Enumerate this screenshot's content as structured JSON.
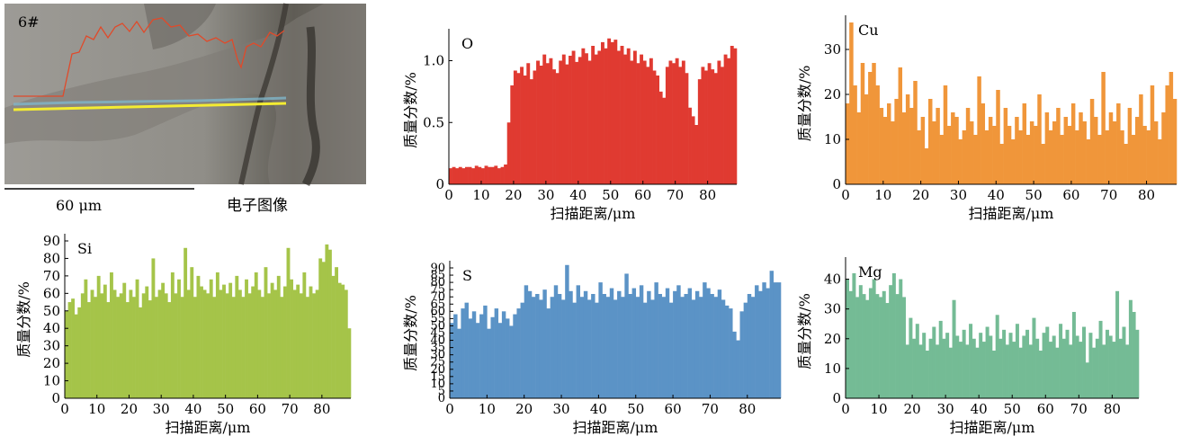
{
  "micrograph": {
    "label": "6#",
    "scale_bar_label": "60 μm",
    "caption": "电子图像"
  },
  "chart_data": [
    {
      "type": "bar",
      "element": "O",
      "color": "#e03a31",
      "xlabel": "扫描距离/μm",
      "ylabel": "质量分数/%",
      "xlim": [
        0,
        89
      ],
      "ylim": [
        0,
        1.2
      ],
      "xticks": [
        0,
        10,
        20,
        30,
        40,
        50,
        60,
        70,
        80
      ],
      "yticks": [
        0,
        0.5,
        1.0
      ],
      "ytick_labels": [
        "0",
        "0.5",
        "1.0"
      ],
      "x": [
        0,
        1,
        2,
        3,
        4,
        5,
        6,
        7,
        8,
        9,
        10,
        11,
        12,
        13,
        14,
        15,
        16,
        17,
        18,
        19,
        20,
        21,
        22,
        23,
        24,
        25,
        26,
        27,
        28,
        29,
        30,
        31,
        32,
        33,
        34,
        35,
        36,
        37,
        38,
        39,
        40,
        41,
        42,
        43,
        44,
        45,
        46,
        47,
        48,
        49,
        50,
        51,
        52,
        53,
        54,
        55,
        56,
        57,
        58,
        59,
        60,
        61,
        62,
        63,
        64,
        65,
        66,
        67,
        68,
        69,
        70,
        71,
        72,
        73,
        74,
        75,
        76,
        77,
        78,
        79,
        80,
        81,
        82,
        83,
        84,
        85,
        86,
        87,
        88
      ],
      "values": [
        0.13,
        0.14,
        0.13,
        0.14,
        0.13,
        0.14,
        0.14,
        0.13,
        0.15,
        0.14,
        0.13,
        0.15,
        0.14,
        0.14,
        0.15,
        0.13,
        0.14,
        0.16,
        0.5,
        0.8,
        0.92,
        0.9,
        0.95,
        0.88,
        0.98,
        0.85,
        0.92,
        1.0,
        0.96,
        1.05,
        0.98,
        1.02,
        0.93,
        0.9,
        1.0,
        1.05,
        0.97,
        1.04,
        1.08,
        0.99,
        1.03,
        1.1,
        1.06,
        1.0,
        1.12,
        1.05,
        1.08,
        1.15,
        1.1,
        1.18,
        1.15,
        1.17,
        1.08,
        1.12,
        1.05,
        1.1,
        1.0,
        1.08,
        0.98,
        1.05,
        1.0,
        0.95,
        1.02,
        0.92,
        0.88,
        0.75,
        0.7,
        0.95,
        1.0,
        0.98,
        1.02,
        0.95,
        1.0,
        0.9,
        0.62,
        0.55,
        0.48,
        0.85,
        0.95,
        0.92,
        0.98,
        0.93,
        0.9,
        1.0,
        0.95,
        1.05,
        1.02,
        1.12,
        1.1
      ]
    },
    {
      "type": "bar",
      "element": "Cu",
      "color": "#f0963a",
      "xlabel": "扫描距离/μm",
      "ylabel": "质量分数/%",
      "xlim": [
        0,
        88
      ],
      "ylim": [
        0,
        36
      ],
      "xticks": [
        0,
        10,
        20,
        30,
        40,
        50,
        60,
        70,
        80
      ],
      "yticks": [
        0,
        10,
        20,
        30
      ],
      "ytick_labels": [
        "0",
        "10",
        "20",
        "30"
      ],
      "x": [
        0,
        1,
        2,
        3,
        4,
        5,
        6,
        7,
        8,
        9,
        10,
        11,
        12,
        13,
        14,
        15,
        16,
        17,
        18,
        19,
        20,
        21,
        22,
        23,
        24,
        25,
        26,
        27,
        28,
        29,
        30,
        31,
        32,
        33,
        34,
        35,
        36,
        37,
        38,
        39,
        40,
        41,
        42,
        43,
        44,
        45,
        46,
        47,
        48,
        49,
        50,
        51,
        52,
        53,
        54,
        55,
        56,
        57,
        58,
        59,
        60,
        61,
        62,
        63,
        64,
        65,
        66,
        67,
        68,
        69,
        70,
        71,
        72,
        73,
        74,
        75,
        76,
        77,
        78,
        79,
        80,
        81,
        82,
        83,
        84,
        85,
        86,
        87
      ],
      "values": [
        18,
        36,
        22,
        16,
        27,
        20,
        25,
        27,
        22,
        17,
        15,
        18,
        14,
        19,
        26,
        16,
        20,
        17,
        23,
        12,
        15,
        8,
        19,
        14,
        17,
        11,
        22,
        13,
        16,
        15,
        10,
        12,
        17,
        14,
        11,
        24,
        18,
        12,
        15,
        13,
        21,
        9,
        17,
        13,
        10,
        15,
        12,
        18,
        11,
        14,
        13,
        20,
        9,
        16,
        12,
        14,
        17,
        11,
        15,
        13,
        18,
        12,
        16,
        14,
        10,
        19,
        15,
        11,
        25,
        12,
        16,
        14,
        18,
        12,
        9,
        17,
        11,
        15,
        20,
        13,
        12,
        22,
        14,
        10,
        16,
        22,
        25,
        19
      ]
    },
    {
      "type": "bar",
      "element": "Si",
      "color": "#a5c449",
      "xlabel": "扫描距离/μm",
      "ylabel": "质量分数/%",
      "xlim": [
        0,
        89
      ],
      "ylim": [
        0,
        90
      ],
      "xticks": [
        0,
        10,
        20,
        30,
        40,
        50,
        60,
        70,
        80
      ],
      "yticks": [
        0,
        10,
        20,
        30,
        40,
        50,
        60,
        70,
        80,
        90
      ],
      "ytick_labels": [
        "0",
        "10",
        "20",
        "30",
        "40",
        "50",
        "60",
        "70",
        "80",
        "90"
      ],
      "x": [
        0,
        1,
        2,
        3,
        4,
        5,
        6,
        7,
        8,
        9,
        10,
        11,
        12,
        13,
        14,
        15,
        16,
        17,
        18,
        19,
        20,
        21,
        22,
        23,
        24,
        25,
        26,
        27,
        28,
        29,
        30,
        31,
        32,
        33,
        34,
        35,
        36,
        37,
        38,
        39,
        40,
        41,
        42,
        43,
        44,
        45,
        46,
        47,
        48,
        49,
        50,
        51,
        52,
        53,
        54,
        55,
        56,
        57,
        58,
        59,
        60,
        61,
        62,
        63,
        64,
        65,
        66,
        67,
        68,
        69,
        70,
        71,
        72,
        73,
        74,
        75,
        76,
        77,
        78,
        79,
        80,
        81,
        82,
        83,
        84,
        85,
        86,
        87,
        88
      ],
      "values": [
        50,
        55,
        57,
        48,
        52,
        60,
        68,
        55,
        62,
        58,
        70,
        60,
        65,
        55,
        72,
        62,
        58,
        60,
        66,
        55,
        62,
        58,
        68,
        52,
        60,
        64,
        56,
        80,
        58,
        62,
        66,
        60,
        55,
        72,
        60,
        68,
        58,
        86,
        62,
        75,
        58,
        70,
        64,
        62,
        60,
        68,
        58,
        72,
        62,
        65,
        60,
        66,
        58,
        70,
        62,
        58,
        68,
        60,
        64,
        72,
        62,
        58,
        75,
        60,
        66,
        62,
        70,
        58,
        64,
        86,
        68,
        62,
        65,
        60,
        72,
        58,
        64,
        60,
        62,
        80,
        78,
        88,
        85,
        70,
        75,
        66,
        65,
        62,
        40
      ]
    },
    {
      "type": "bar",
      "element": "S",
      "color": "#5b93c6",
      "xlabel": "扫描距离/μm",
      "ylabel": "质量分数/%",
      "xlim": [
        0,
        89
      ],
      "ylim": [
        0,
        90
      ],
      "xticks": [
        0,
        10,
        20,
        30,
        40,
        50,
        60,
        70,
        80
      ],
      "yticks": [
        0,
        5,
        10,
        15,
        20,
        25,
        30,
        35,
        40,
        45,
        50,
        55,
        60,
        65,
        70,
        75,
        80,
        85,
        90
      ],
      "ytick_labels": [
        "0",
        "5",
        "10",
        "15",
        "20",
        "25",
        "30",
        "35",
        "40",
        "45",
        "50",
        "55",
        "60",
        "65",
        "70",
        "75",
        "80",
        "85",
        "90"
      ],
      "x": [
        0,
        1,
        2,
        3,
        4,
        5,
        6,
        7,
        8,
        9,
        10,
        11,
        12,
        13,
        14,
        15,
        16,
        17,
        18,
        19,
        20,
        21,
        22,
        23,
        24,
        25,
        26,
        27,
        28,
        29,
        30,
        31,
        32,
        33,
        34,
        35,
        36,
        37,
        38,
        39,
        40,
        41,
        42,
        43,
        44,
        45,
        46,
        47,
        48,
        49,
        50,
        51,
        52,
        53,
        54,
        55,
        56,
        57,
        58,
        59,
        60,
        61,
        62,
        63,
        64,
        65,
        66,
        67,
        68,
        69,
        70,
        71,
        72,
        73,
        74,
        75,
        76,
        77,
        78,
        79,
        80,
        81,
        82,
        83,
        84,
        85,
        86,
        87,
        88
      ],
      "values": [
        52,
        58,
        48,
        62,
        66,
        55,
        60,
        52,
        58,
        64,
        48,
        56,
        62,
        52,
        60,
        55,
        50,
        58,
        62,
        66,
        78,
        74,
        70,
        72,
        68,
        75,
        62,
        70,
        78,
        72,
        68,
        92,
        74,
        66,
        78,
        70,
        74,
        68,
        72,
        66,
        80,
        72,
        70,
        76,
        68,
        74,
        70,
        86,
        72,
        76,
        70,
        78,
        66,
        74,
        68,
        80,
        72,
        70,
        76,
        66,
        74,
        78,
        70,
        72,
        76,
        68,
        74,
        70,
        80,
        76,
        72,
        70,
        75,
        68,
        64,
        62,
        46,
        40,
        60,
        66,
        72,
        70,
        78,
        74,
        80,
        76,
        88,
        80,
        80
      ]
    },
    {
      "type": "bar",
      "element": "Mg",
      "color": "#74bb95",
      "xlabel": "扫描距离/μm",
      "ylabel": "质量分数/%",
      "xlim": [
        0,
        88
      ],
      "ylim": [
        0,
        45
      ],
      "xticks": [
        0,
        10,
        20,
        30,
        40,
        50,
        60,
        70,
        80
      ],
      "yticks": [
        0,
        10,
        20,
        30,
        40
      ],
      "ytick_labels": [
        "0",
        "10",
        "20",
        "30",
        "40"
      ],
      "x": [
        0,
        1,
        2,
        3,
        4,
        5,
        6,
        7,
        8,
        9,
        10,
        11,
        12,
        13,
        14,
        15,
        16,
        17,
        18,
        19,
        20,
        21,
        22,
        23,
        24,
        25,
        26,
        27,
        28,
        29,
        30,
        31,
        32,
        33,
        34,
        35,
        36,
        37,
        38,
        39,
        40,
        41,
        42,
        43,
        44,
        45,
        46,
        47,
        48,
        49,
        50,
        51,
        52,
        53,
        54,
        55,
        56,
        57,
        58,
        59,
        60,
        61,
        62,
        63,
        64,
        65,
        66,
        67,
        68,
        69,
        70,
        71,
        72,
        73,
        74,
        75,
        76,
        77,
        78,
        79,
        80,
        81,
        82,
        83,
        84,
        85,
        86,
        87
      ],
      "values": [
        40,
        36,
        42,
        34,
        38,
        35,
        33,
        37,
        40,
        35,
        34,
        36,
        32,
        38,
        42,
        35,
        40,
        34,
        18,
        27,
        20,
        25,
        18,
        22,
        16,
        20,
        24,
        18,
        26,
        20,
        22,
        17,
        33,
        21,
        19,
        23,
        18,
        25,
        20,
        17,
        22,
        19,
        24,
        21,
        16,
        28,
        20,
        23,
        18,
        22,
        19,
        25,
        17,
        21,
        23,
        18,
        27,
        20,
        16,
        22,
        24,
        19,
        21,
        17,
        25,
        20,
        23,
        18,
        29,
        21,
        19,
        24,
        12,
        22,
        17,
        20,
        26,
        18,
        23,
        21,
        19,
        36,
        20,
        24,
        18,
        33,
        29,
        23
      ]
    }
  ]
}
